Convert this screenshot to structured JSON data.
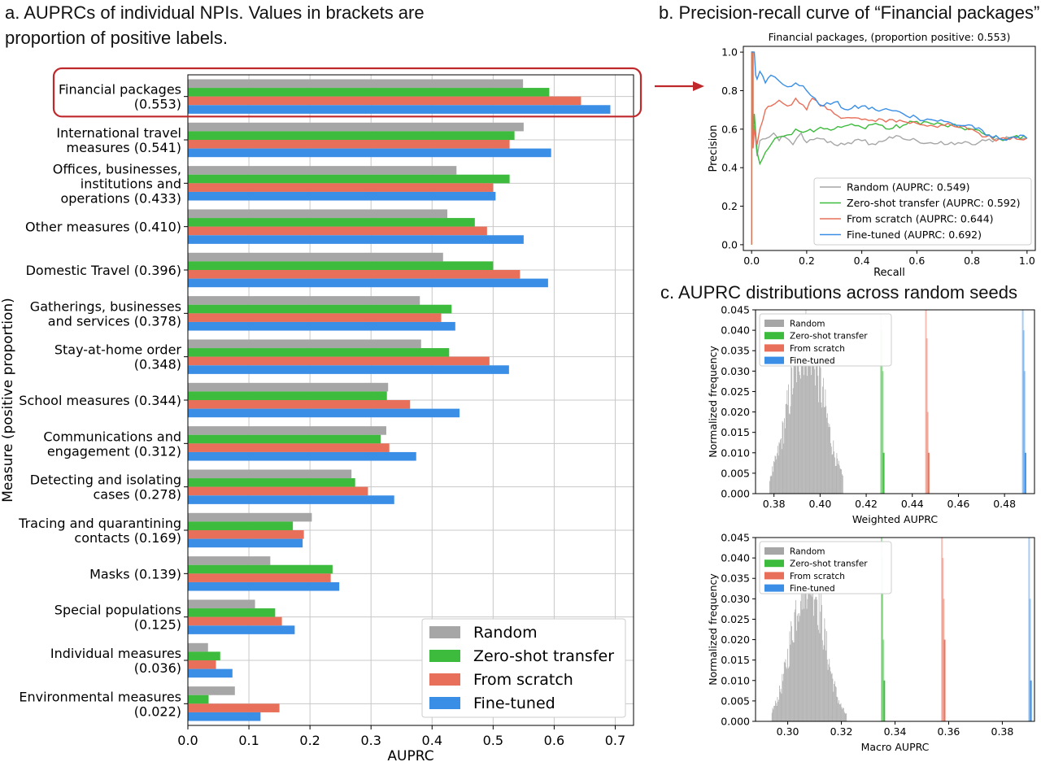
{
  "panels": {
    "a_title": "a. AUPRCs of individual NPIs. Values in brackets are\nproportion of positive labels.",
    "b_title": "b. Precision-recall curve of “Financial packages”",
    "c_title": "c. AUPRC distributions across random seeds"
  },
  "colors": {
    "random": "#a6a6a6",
    "zero_shot": "#3dbb3d",
    "scratch": "#e8705a",
    "finetuned": "#3a8ee6",
    "highlight": "#c0292b"
  },
  "chart_data": [
    {
      "type": "bar",
      "orientation": "horizontal",
      "xlabel": "AUPRC",
      "ylabel": "Measure (positive proportion)",
      "xlim": [
        0,
        0.73
      ],
      "xticks": [
        "0.0",
        "0.1",
        "0.2",
        "0.3",
        "0.4",
        "0.5",
        "0.6",
        "0.7"
      ],
      "grid": true,
      "legend_position": "bottom-right",
      "highlighted_category": "Financial packages\n(0.553)",
      "categories": [
        "Financial packages\n(0.553)",
        "International travel\nmeasures (0.541)",
        "Offices, businesses,\ninstitutions and\noperations (0.433)",
        "Other measures (0.410)",
        "Domestic Travel (0.396)",
        "Gatherings, businesses\nand services (0.378)",
        "Stay-at-home order\n(0.348)",
        "School measures (0.344)",
        "Communications and\nengagement (0.312)",
        "Detecting and isolating\ncases (0.278)",
        "Tracing and quarantining\ncontacts (0.169)",
        "Masks (0.139)",
        "Special populations\n(0.125)",
        "Individual measures\n(0.036)",
        "Environmental measures\n(0.022)"
      ],
      "series": [
        {
          "name": "Random",
          "values": [
            0.549,
            0.55,
            0.44,
            0.425,
            0.418,
            0.38,
            0.382,
            0.328,
            0.325,
            0.268,
            0.203,
            0.135,
            0.11,
            0.033,
            0.077
          ]
        },
        {
          "name": "Zero-shot transfer",
          "values": [
            0.592,
            0.535,
            0.527,
            0.47,
            0.5,
            0.432,
            0.428,
            0.326,
            0.316,
            0.274,
            0.172,
            0.237,
            0.143,
            0.053,
            0.034
          ]
        },
        {
          "name": "From scratch",
          "values": [
            0.644,
            0.527,
            0.5,
            0.49,
            0.544,
            0.415,
            0.494,
            0.364,
            0.33,
            0.295,
            0.19,
            0.234,
            0.154,
            0.046,
            0.15
          ]
        },
        {
          "name": "Fine-tuned",
          "values": [
            0.692,
            0.595,
            0.504,
            0.55,
            0.59,
            0.438,
            0.526,
            0.445,
            0.374,
            0.338,
            0.188,
            0.248,
            0.175,
            0.073,
            0.119
          ]
        }
      ]
    },
    {
      "type": "line",
      "title": "Financial packages, (proportion positive: 0.553)",
      "xlabel": "Recall",
      "ylabel": "Precision",
      "xlim": [
        -0.03,
        1.03
      ],
      "ylim": [
        -0.03,
        1.03
      ],
      "xticks": [
        "0.0",
        "0.2",
        "0.4",
        "0.6",
        "0.8",
        "1.0"
      ],
      "yticks": [
        "0.0",
        "0.2",
        "0.4",
        "0.6",
        "0.8",
        "1.0"
      ],
      "grid": false,
      "legend_position": "bottom-right",
      "series": [
        {
          "name": "Random (AUPRC: 0.549)",
          "points": [
            [
              0,
              0
            ],
            [
              0,
              1
            ],
            [
              0.005,
              1
            ],
            [
              0.005,
              0.5
            ],
            [
              0.01,
              0.62
            ],
            [
              0.02,
              0.46
            ],
            [
              0.03,
              0.54
            ],
            [
              0.05,
              0.55
            ],
            [
              0.08,
              0.58
            ],
            [
              0.1,
              0.54
            ],
            [
              0.12,
              0.56
            ],
            [
              0.15,
              0.52
            ],
            [
              0.18,
              0.58
            ],
            [
              0.2,
              0.53
            ],
            [
              0.25,
              0.55
            ],
            [
              0.3,
              0.52
            ],
            [
              0.35,
              0.53
            ],
            [
              0.4,
              0.54
            ],
            [
              0.45,
              0.52
            ],
            [
              0.5,
              0.56
            ],
            [
              0.55,
              0.55
            ],
            [
              0.6,
              0.54
            ],
            [
              0.65,
              0.53
            ],
            [
              0.7,
              0.52
            ],
            [
              0.75,
              0.53
            ],
            [
              0.8,
              0.52
            ],
            [
              0.85,
              0.54
            ],
            [
              0.9,
              0.55
            ],
            [
              0.95,
              0.56
            ],
            [
              1.0,
              0.553
            ]
          ]
        },
        {
          "name": "Zero-shot transfer (AUPRC: 0.592)",
          "points": [
            [
              0,
              0
            ],
            [
              0,
              1
            ],
            [
              0.005,
              1
            ],
            [
              0.005,
              0.55
            ],
            [
              0.01,
              0.68
            ],
            [
              0.02,
              0.48
            ],
            [
              0.03,
              0.42
            ],
            [
              0.05,
              0.48
            ],
            [
              0.07,
              0.52
            ],
            [
              0.1,
              0.56
            ],
            [
              0.13,
              0.57
            ],
            [
              0.16,
              0.6
            ],
            [
              0.2,
              0.59
            ],
            [
              0.25,
              0.61
            ],
            [
              0.3,
              0.6
            ],
            [
              0.35,
              0.62
            ],
            [
              0.4,
              0.61
            ],
            [
              0.45,
              0.63
            ],
            [
              0.5,
              0.6
            ],
            [
              0.55,
              0.62
            ],
            [
              0.6,
              0.64
            ],
            [
              0.65,
              0.63
            ],
            [
              0.7,
              0.62
            ],
            [
              0.75,
              0.61
            ],
            [
              0.8,
              0.6
            ],
            [
              0.85,
              0.57
            ],
            [
              0.9,
              0.55
            ],
            [
              0.95,
              0.56
            ],
            [
              1.0,
              0.553
            ]
          ]
        },
        {
          "name": "From scratch (AUPRC: 0.644)",
          "points": [
            [
              0,
              0
            ],
            [
              0,
              1
            ],
            [
              0.005,
              1
            ],
            [
              0.005,
              0.5
            ],
            [
              0.01,
              0.6
            ],
            [
              0.02,
              0.52
            ],
            [
              0.03,
              0.6
            ],
            [
              0.05,
              0.7
            ],
            [
              0.07,
              0.72
            ],
            [
              0.1,
              0.75
            ],
            [
              0.13,
              0.72
            ],
            [
              0.16,
              0.76
            ],
            [
              0.2,
              0.7
            ],
            [
              0.22,
              0.76
            ],
            [
              0.25,
              0.72
            ],
            [
              0.3,
              0.68
            ],
            [
              0.35,
              0.66
            ],
            [
              0.4,
              0.65
            ],
            [
              0.45,
              0.64
            ],
            [
              0.5,
              0.65
            ],
            [
              0.55,
              0.64
            ],
            [
              0.6,
              0.63
            ],
            [
              0.65,
              0.62
            ],
            [
              0.7,
              0.62
            ],
            [
              0.75,
              0.61
            ],
            [
              0.8,
              0.6
            ],
            [
              0.85,
              0.56
            ],
            [
              0.9,
              0.55
            ],
            [
              0.95,
              0.56
            ],
            [
              1.0,
              0.553
            ]
          ]
        },
        {
          "name": "Fine-tuned (AUPRC: 0.692)",
          "points": [
            [
              0,
              1
            ],
            [
              0.01,
              1
            ],
            [
              0.015,
              0.88
            ],
            [
              0.02,
              0.86
            ],
            [
              0.03,
              0.9
            ],
            [
              0.05,
              0.84
            ],
            [
              0.07,
              0.88
            ],
            [
              0.1,
              0.85
            ],
            [
              0.13,
              0.82
            ],
            [
              0.16,
              0.84
            ],
            [
              0.2,
              0.8
            ],
            [
              0.23,
              0.76
            ],
            [
              0.26,
              0.72
            ],
            [
              0.3,
              0.74
            ],
            [
              0.35,
              0.7
            ],
            [
              0.4,
              0.72
            ],
            [
              0.45,
              0.7
            ],
            [
              0.5,
              0.7
            ],
            [
              0.55,
              0.68
            ],
            [
              0.6,
              0.66
            ],
            [
              0.65,
              0.65
            ],
            [
              0.7,
              0.64
            ],
            [
              0.75,
              0.62
            ],
            [
              0.8,
              0.62
            ],
            [
              0.85,
              0.57
            ],
            [
              0.9,
              0.55
            ],
            [
              0.95,
              0.56
            ],
            [
              1.0,
              0.553
            ]
          ]
        }
      ]
    },
    {
      "type": "histogram",
      "xlabel": "Weighted AUPRC",
      "ylabel": "Normalized frequency",
      "xlim": [
        0.372,
        0.493
      ],
      "ylim": [
        0,
        0.045
      ],
      "xticks": [
        "0.38",
        "0.40",
        "0.42",
        "0.44",
        "0.46",
        "0.48"
      ],
      "yticks": [
        "0.000",
        "0.005",
        "0.010",
        "0.015",
        "0.020",
        "0.025",
        "0.030",
        "0.035",
        "0.040",
        "0.045"
      ],
      "legend_position": "top-left",
      "series": [
        {
          "name": "Random",
          "kind": "normal",
          "mean": 0.394,
          "sd": 0.0075,
          "min": 0.378,
          "max": 0.41,
          "peak": 0.039
        },
        {
          "name": "Zero-shot transfer",
          "kind": "spike",
          "center": 0.427,
          "peaks": [
            0.044,
            0.04,
            0.03,
            0.01
          ]
        },
        {
          "name": "From scratch",
          "kind": "spike",
          "center": 0.4465,
          "peaks": [
            0.045,
            0.038,
            0.02,
            0.01
          ]
        },
        {
          "name": "Fine-tuned",
          "kind": "spike",
          "center": 0.4885,
          "peaks": [
            0.045,
            0.04,
            0.03,
            0.01
          ]
        }
      ]
    },
    {
      "type": "histogram",
      "xlabel": "Macro AUPRC",
      "ylabel": "Normalized frequency",
      "xlim": [
        0.288,
        0.392
      ],
      "ylim": [
        0,
        0.045
      ],
      "xticks": [
        "0.30",
        "0.32",
        "0.34",
        "0.36",
        "0.38"
      ],
      "yticks": [
        "0.000",
        "0.005",
        "0.010",
        "0.015",
        "0.020",
        "0.025",
        "0.030",
        "0.035",
        "0.040",
        "0.045"
      ],
      "legend_position": "top-left",
      "series": [
        {
          "name": "Random",
          "kind": "normal",
          "mean": 0.3075,
          "sd": 0.0058,
          "min": 0.294,
          "max": 0.322,
          "peak": 0.038
        },
        {
          "name": "Zero-shot transfer",
          "kind": "spike",
          "center": 0.3355,
          "peaks": [
            0.045,
            0.04,
            0.02,
            0.01
          ]
        },
        {
          "name": "From scratch",
          "kind": "spike",
          "center": 0.358,
          "peaks": [
            0.045,
            0.04,
            0.03,
            0.02
          ]
        },
        {
          "name": "Fine-tuned",
          "kind": "spike",
          "center": 0.3905,
          "peaks": [
            0.045,
            0.03,
            0.01
          ]
        }
      ]
    }
  ]
}
